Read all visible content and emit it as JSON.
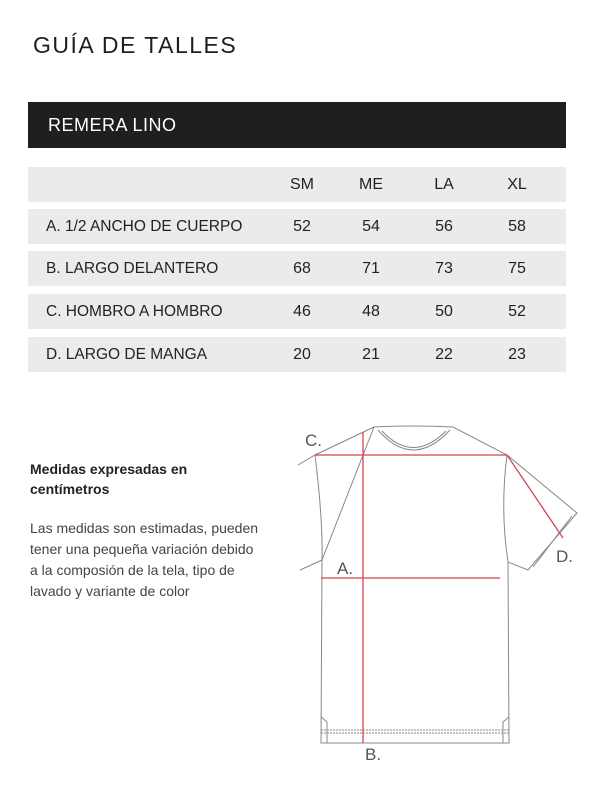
{
  "title": "GUÍA  DE TALLES",
  "product": "REMERA LINO",
  "table": {
    "sizes": [
      "SM",
      "ME",
      "LA",
      "XL"
    ],
    "rows": [
      {
        "label": "A. 1/2 ANCHO DE CUERPO",
        "values": [
          "52",
          "54",
          "56",
          "58"
        ]
      },
      {
        "label": "B. LARGO DELANTERO",
        "values": [
          "68",
          "71",
          "73",
          "75"
        ]
      },
      {
        "label": "C. HOMBRO A HOMBRO",
        "values": [
          "46",
          "48",
          "50",
          "52"
        ]
      },
      {
        "label": "D. LARGO DE MANGA",
        "values": [
          "20",
          "21",
          "22",
          "23"
        ]
      }
    ]
  },
  "note": {
    "heading": "Medidas expresadas en centímetros",
    "body": "Las medidas son estimadas, pueden tener una pequeña variación debido a la composión de la tela, tipo de lavado y variante de color"
  },
  "diagram": {
    "labels": {
      "a": "A.",
      "b": "B.",
      "c": "C.",
      "d": "D."
    },
    "measure_color": "#d0454f"
  }
}
